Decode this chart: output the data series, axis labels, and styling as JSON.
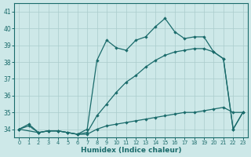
{
  "xlabel": "Humidex (Indice chaleur)",
  "xlim": [
    -0.5,
    23.5
  ],
  "ylim": [
    33.5,
    41.5
  ],
  "yticks": [
    34,
    35,
    36,
    37,
    38,
    39,
    40,
    41
  ],
  "xticks": [
    0,
    1,
    2,
    3,
    4,
    5,
    6,
    7,
    8,
    9,
    10,
    11,
    12,
    13,
    14,
    15,
    16,
    17,
    18,
    19,
    20,
    21,
    22,
    23
  ],
  "bg_color": "#cde8e8",
  "grid_color": "#aacccc",
  "line_color": "#1a6b6b",
  "line1_x": [
    0,
    1,
    2,
    3,
    4,
    5,
    6,
    7,
    8,
    9,
    10,
    11,
    12,
    13,
    14,
    15,
    16,
    17,
    18,
    19,
    20,
    21,
    22,
    23
  ],
  "line1_y": [
    34.0,
    34.2,
    33.8,
    33.9,
    33.9,
    33.8,
    33.7,
    33.7,
    34.0,
    34.2,
    34.3,
    34.4,
    34.5,
    34.6,
    34.7,
    34.8,
    34.9,
    35.0,
    35.0,
    35.1,
    35.2,
    35.3,
    35.0,
    35.0
  ],
  "line2_x": [
    0,
    1,
    2,
    3,
    4,
    5,
    6,
    7,
    8,
    9,
    10,
    11,
    12,
    13,
    14,
    15,
    16,
    17,
    18,
    19,
    20,
    21,
    22,
    23
  ],
  "line2_y": [
    34.0,
    34.3,
    33.8,
    33.9,
    33.9,
    33.8,
    33.7,
    33.8,
    34.8,
    35.5,
    36.2,
    36.8,
    37.2,
    37.7,
    38.1,
    38.4,
    38.6,
    38.7,
    38.8,
    38.8,
    38.6,
    38.2,
    34.0,
    35.0
  ],
  "line3_x": [
    0,
    2,
    3,
    4,
    5,
    6,
    7,
    8,
    9,
    10,
    11,
    12,
    13,
    14,
    15,
    16,
    17,
    18,
    19,
    20,
    21,
    22,
    23
  ],
  "line3_y": [
    34.0,
    33.8,
    33.9,
    33.9,
    33.8,
    33.7,
    34.0,
    38.1,
    39.3,
    38.85,
    38.7,
    39.3,
    39.5,
    40.1,
    40.6,
    39.8,
    39.4,
    39.5,
    39.5,
    38.6,
    38.2,
    34.0,
    35.0
  ]
}
